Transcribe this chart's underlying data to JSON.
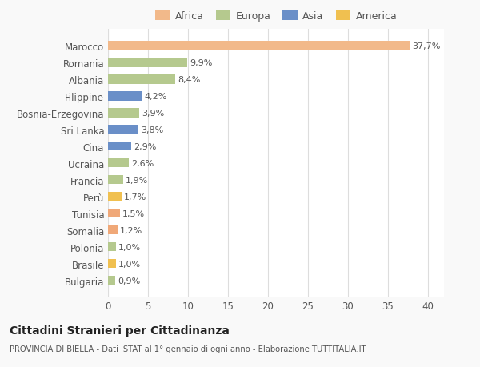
{
  "categories": [
    "Bulgaria",
    "Brasile",
    "Polonia",
    "Somalia",
    "Tunisia",
    "Perù",
    "Francia",
    "Ucraina",
    "Cina",
    "Sri Lanka",
    "Bosnia-Erzegovina",
    "Filippine",
    "Albania",
    "Romania",
    "Marocco"
  ],
  "values": [
    0.9,
    1.0,
    1.0,
    1.2,
    1.5,
    1.7,
    1.9,
    2.6,
    2.9,
    3.8,
    3.9,
    4.2,
    8.4,
    9.9,
    37.7
  ],
  "labels": [
    "0,9%",
    "1,0%",
    "1,0%",
    "1,2%",
    "1,5%",
    "1,7%",
    "1,9%",
    "2,6%",
    "2,9%",
    "3,8%",
    "3,9%",
    "4,2%",
    "8,4%",
    "9,9%",
    "37,7%"
  ],
  "colors": [
    "#b5c98e",
    "#f0c050",
    "#b5c98e",
    "#f0a878",
    "#f0a878",
    "#f0c050",
    "#b5c98e",
    "#b5c98e",
    "#6a8fc8",
    "#6a8fc8",
    "#b5c98e",
    "#6a8fc8",
    "#b5c98e",
    "#b5c98e",
    "#f2b98a"
  ],
  "legend": {
    "Africa": "#f2b98a",
    "Europa": "#b5c98e",
    "Asia": "#6a8fc8",
    "America": "#f0c050"
  },
  "xlim": [
    0,
    42
  ],
  "xticks": [
    0,
    5,
    10,
    15,
    20,
    25,
    30,
    35,
    40
  ],
  "title": "Cittadini Stranieri per Cittadinanza",
  "subtitle": "PROVINCIA DI BIELLA - Dati ISTAT al 1° gennaio di ogni anno - Elaborazione TUTTITALIA.IT",
  "bg_color": "#f9f9f9",
  "plot_bg_color": "#ffffff",
  "grid_color": "#dddddd",
  "text_color": "#555555",
  "label_color": "#555555",
  "bar_height": 0.55
}
